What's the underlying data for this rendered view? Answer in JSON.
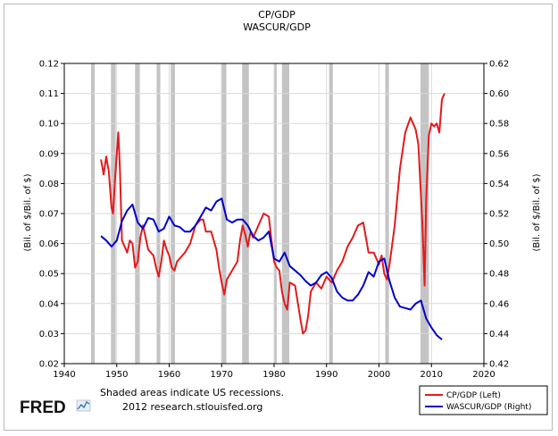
{
  "chart_data": {
    "type": "line",
    "title": "CP/GDP",
    "subtitle": "WASCUR/GDP",
    "xlabel": "",
    "ylabel_left": "(Bil. of $/Bil. of $)",
    "ylabel_right": "(Bil. of $/Bil. of $)",
    "xlim": [
      1940,
      2020
    ],
    "ylim_left": [
      0.02,
      0.12
    ],
    "ylim_right": [
      0.42,
      0.62
    ],
    "x_ticks": [
      "1940",
      "1950",
      "1960",
      "1970",
      "1980",
      "1990",
      "2000",
      "2010",
      "2020"
    ],
    "y_ticks_left": [
      "0.02",
      "0.03",
      "0.04",
      "0.05",
      "0.06",
      "0.07",
      "0.08",
      "0.09",
      "0.10",
      "0.11",
      "0.12"
    ],
    "y_ticks_right": [
      "0.42",
      "0.44",
      "0.46",
      "0.48",
      "0.50",
      "0.52",
      "0.54",
      "0.56",
      "0.58",
      "0.60",
      "0.62"
    ],
    "grid": true,
    "legend_position": "bottom-right",
    "recessions": [
      [
        1945.1,
        1945.8
      ],
      [
        1948.9,
        1949.8
      ],
      [
        1953.5,
        1954.4
      ],
      [
        1957.6,
        1958.3
      ],
      [
        1960.3,
        1961.1
      ],
      [
        1969.9,
        1970.9
      ],
      [
        1973.9,
        1975.2
      ],
      [
        1980.0,
        1980.5
      ],
      [
        1981.5,
        1982.9
      ],
      [
        1990.5,
        1991.2
      ],
      [
        2001.2,
        2001.9
      ],
      [
        2007.9,
        2009.5
      ]
    ],
    "series": [
      {
        "name": "CP/GDP (Left)",
        "axis": "left",
        "color": "#e41a1c",
        "x": [
          1947,
          1947.5,
          1948,
          1948.5,
          1949,
          1949.3,
          1949.7,
          1950,
          1950.3,
          1950.6,
          1951,
          1951.5,
          1952,
          1952.5,
          1953,
          1953.5,
          1954,
          1954.5,
          1955,
          1955.5,
          1956,
          1956.5,
          1957,
          1957.5,
          1958,
          1958.5,
          1959,
          1959.5,
          1960,
          1960.5,
          1961,
          1961.5,
          1962,
          1963,
          1964,
          1965,
          1966,
          1966.5,
          1967,
          1968,
          1969,
          1969.5,
          1970,
          1970.5,
          1971,
          1972,
          1973,
          1973.5,
          1974,
          1974.5,
          1975,
          1975.5,
          1976,
          1977,
          1978,
          1979,
          1979.5,
          1980,
          1980.5,
          1981,
          1981.5,
          1982,
          1982.5,
          1983,
          1984,
          1985,
          1985.5,
          1986,
          1986.5,
          1987,
          1988,
          1989,
          1990,
          1991,
          1992,
          1993,
          1994,
          1995,
          1996,
          1997,
          1998,
          1999,
          2000,
          2000.5,
          2001,
          2001.5,
          2002,
          2003,
          2004,
          2005,
          2006,
          2006.5,
          2007,
          2007.5,
          2008,
          2008.3,
          2008.7,
          2009,
          2009.5,
          2010,
          2010.5,
          2011,
          2011.5,
          2012,
          2012.5
        ],
        "values": [
          0.088,
          0.083,
          0.089,
          0.084,
          0.072,
          0.07,
          0.082,
          0.09,
          0.097,
          0.085,
          0.061,
          0.059,
          0.057,
          0.061,
          0.06,
          0.052,
          0.054,
          0.062,
          0.066,
          0.062,
          0.058,
          0.057,
          0.056,
          0.052,
          0.049,
          0.054,
          0.061,
          0.058,
          0.056,
          0.052,
          0.051,
          0.054,
          0.055,
          0.057,
          0.06,
          0.066,
          0.068,
          0.068,
          0.064,
          0.064,
          0.058,
          0.052,
          0.047,
          0.043,
          0.048,
          0.051,
          0.054,
          0.061,
          0.066,
          0.063,
          0.059,
          0.064,
          0.062,
          0.066,
          0.07,
          0.069,
          0.061,
          0.054,
          0.052,
          0.051,
          0.044,
          0.04,
          0.038,
          0.047,
          0.046,
          0.035,
          0.03,
          0.031,
          0.036,
          0.044,
          0.047,
          0.045,
          0.049,
          0.047,
          0.051,
          0.054,
          0.059,
          0.062,
          0.066,
          0.067,
          0.057,
          0.057,
          0.053,
          0.056,
          0.05,
          0.048,
          0.053,
          0.066,
          0.085,
          0.097,
          0.102,
          0.1,
          0.098,
          0.093,
          0.076,
          0.065,
          0.046,
          0.075,
          0.096,
          0.1,
          0.099,
          0.1,
          0.097,
          0.108,
          0.11
        ]
      },
      {
        "name": "WASCUR/GDP (Right)",
        "axis": "right",
        "color": "#0000cc",
        "x": [
          1947,
          1948,
          1949,
          1950,
          1951,
          1952,
          1953,
          1954,
          1955,
          1956,
          1957,
          1958,
          1959,
          1960,
          1961,
          1962,
          1963,
          1964,
          1965,
          1966,
          1967,
          1968,
          1969,
          1970,
          1971,
          1972,
          1973,
          1974,
          1975,
          1976,
          1977,
          1978,
          1979,
          1980,
          1981,
          1982,
          1983,
          1984,
          1985,
          1986,
          1987,
          1988,
          1989,
          1990,
          1991,
          1992,
          1993,
          1994,
          1995,
          1996,
          1997,
          1998,
          1999,
          2000,
          2001,
          2002,
          2003,
          2004,
          2005,
          2006,
          2007,
          2008,
          2009,
          2010,
          2011,
          2012
        ],
        "values": [
          0.505,
          0.502,
          0.498,
          0.502,
          0.515,
          0.522,
          0.526,
          0.514,
          0.51,
          0.517,
          0.516,
          0.508,
          0.51,
          0.518,
          0.512,
          0.511,
          0.508,
          0.508,
          0.512,
          0.518,
          0.524,
          0.522,
          0.528,
          0.53,
          0.516,
          0.514,
          0.516,
          0.516,
          0.512,
          0.505,
          0.502,
          0.504,
          0.508,
          0.49,
          0.488,
          0.494,
          0.485,
          0.482,
          0.479,
          0.475,
          0.472,
          0.474,
          0.479,
          0.481,
          0.477,
          0.468,
          0.464,
          0.462,
          0.462,
          0.466,
          0.472,
          0.481,
          0.478,
          0.488,
          0.49,
          0.475,
          0.464,
          0.458,
          0.457,
          0.456,
          0.46,
          0.462,
          0.45,
          0.444,
          0.439,
          0.436
        ]
      }
    ]
  },
  "footer": {
    "logo_text": "FRED",
    "logo_icon": "chart-line-icon",
    "note": "Shaded areas indicate US recessions.",
    "source": "2012 research.stlouisfed.org"
  },
  "colors": {
    "recession": "#c4c4c4",
    "grid": "#d9d9d9",
    "logo_fred": "#111111"
  }
}
